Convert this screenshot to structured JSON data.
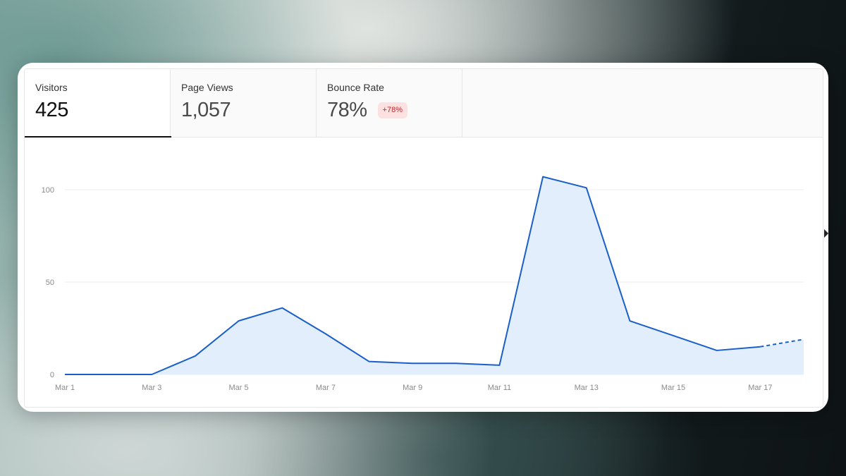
{
  "tabs": [
    {
      "label": "Visitors",
      "value": "425",
      "active": true
    },
    {
      "label": "Page Views",
      "value": "1,057",
      "active": false
    },
    {
      "label": "Bounce Rate",
      "value": "78%",
      "badge": "+78%",
      "active": false
    }
  ],
  "colors": {
    "line": "#1a5fc9",
    "fill": "#e2eefc",
    "grid": "#ededed",
    "badge_bg": "#fde1e1",
    "badge_text": "#c0262d"
  },
  "chart_data": {
    "type": "area",
    "x": [
      "Mar 1",
      "Mar 2",
      "Mar 3",
      "Mar 4",
      "Mar 5",
      "Mar 6",
      "Mar 7",
      "Mar 8",
      "Mar 9",
      "Mar 10",
      "Mar 11",
      "Mar 12",
      "Mar 13",
      "Mar 14",
      "Mar 15",
      "Mar 16",
      "Mar 17",
      "Mar 18"
    ],
    "series": [
      {
        "values": [
          0,
          0,
          0,
          10,
          29,
          36,
          22,
          7,
          6,
          6,
          5,
          107,
          101,
          29,
          21,
          13,
          15,
          19
        ]
      }
    ],
    "dashed_last_segment": true,
    "x_tick_labels": [
      "Mar 1",
      "Mar 3",
      "Mar 5",
      "Mar 7",
      "Mar 9",
      "Mar 11",
      "Mar 13",
      "Mar 15",
      "Mar 17"
    ],
    "y_ticks": [
      0,
      50,
      100
    ],
    "ylim": [
      0,
      108
    ],
    "grid": true,
    "legend": "none"
  }
}
